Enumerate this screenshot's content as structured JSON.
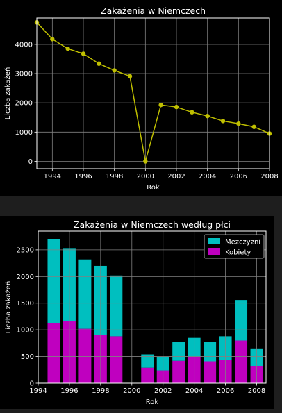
{
  "colors": {
    "background_outer": "#1e1e1e",
    "background_figure": "#000000",
    "axes_frame": "#ffffff",
    "grid": "#808080",
    "text": "#ffffff",
    "line_series": "#bfbf00",
    "men": "#00bfbf",
    "women": "#bf00bf"
  },
  "chart_data": [
    {
      "type": "line",
      "title": "Zakażenia w Niemczech",
      "xlabel": "Rok",
      "ylabel": "Liczba zakażeń",
      "xlim": [
        1993,
        2008
      ],
      "ylim": [
        -250,
        4900
      ],
      "x_ticks": [
        "1994",
        "1996",
        "1998",
        "2000",
        "2002",
        "2004",
        "2006",
        "2008"
      ],
      "y_ticks": [
        "0",
        "1000",
        "2000",
        "3000",
        "4000"
      ],
      "grid": true,
      "legend": "none",
      "series": [
        {
          "x": [
            1993,
            1994,
            1995,
            1996,
            1997,
            1998,
            1999,
            2000,
            2001,
            2002,
            2003,
            2004,
            2005,
            2006,
            2007,
            2008
          ],
          "y": [
            4750,
            4180,
            3850,
            3680,
            3340,
            3110,
            2910,
            0,
            1930,
            1860,
            1680,
            1550,
            1380,
            1290,
            1180,
            950
          ]
        }
      ]
    },
    {
      "type": "bar",
      "stacked": true,
      "title": "Zakażenia w Niemczech według płci",
      "xlabel": "Rok",
      "ylabel": "Liczba zakażeń",
      "xlim": [
        1994,
        2008.6
      ],
      "ylim": [
        0,
        2850
      ],
      "x_ticks": [
        "1994",
        "1996",
        "1998",
        "2000",
        "2002",
        "2004",
        "2006",
        "2008"
      ],
      "y_ticks": [
        "0",
        "500",
        "1000",
        "1500",
        "2000",
        "2500"
      ],
      "grid": true,
      "legend": "top-right",
      "x": [
        1995,
        1996,
        1997,
        1998,
        1999,
        2001,
        2002,
        2003,
        2004,
        2005,
        2006,
        2007,
        2008
      ],
      "series": [
        {
          "name": "Kobiety",
          "values": [
            1130,
            1160,
            1020,
            910,
            880,
            290,
            240,
            420,
            490,
            410,
            430,
            800,
            320
          ]
        },
        {
          "name": "Mezczyzni",
          "values": [
            1570,
            1360,
            1300,
            1290,
            1140,
            250,
            250,
            350,
            360,
            360,
            450,
            760,
            320
          ]
        }
      ]
    }
  ]
}
